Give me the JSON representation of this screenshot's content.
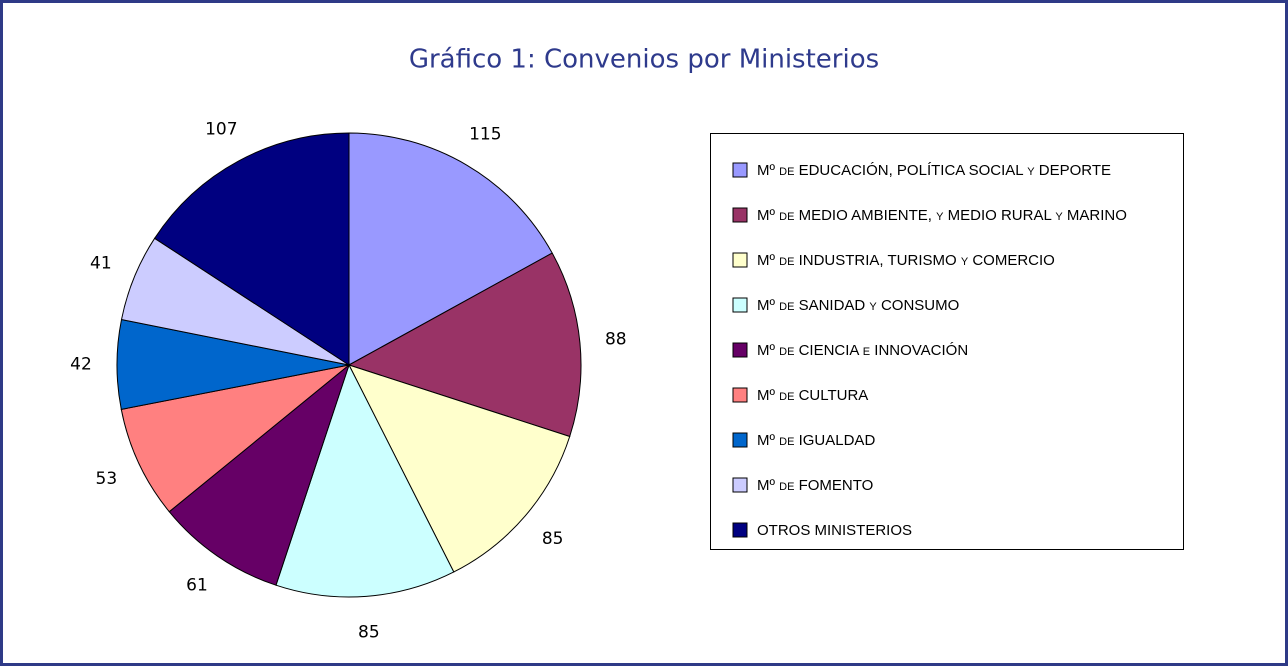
{
  "chart_data": {
    "type": "pie",
    "title": "Gráfico 1: Convenios por Ministerios",
    "categories": [
      "Mº de EDUCACIÓN, POLÍTICA SOCIAL y DEPORTE",
      "Mº de MEDIO AMBIENTE, y MEDIO RURAL y MARINO",
      "Mº de INDUSTRIA, TURISMO y COMERCIO",
      "Mº de SANIDAD y CONSUMO",
      "Mº de CIENCIA e INNOVACIÓN",
      "Mº de CULTURA",
      "Mº de IGUALDAD",
      "Mº de FOMENTO",
      "OTROS MINISTERIOS"
    ],
    "values": [
      115,
      88,
      85,
      85,
      61,
      53,
      42,
      41,
      107
    ],
    "colors": [
      "#9999ff",
      "#993366",
      "#ffffcc",
      "#ccffff",
      "#660066",
      "#ff8080",
      "#0066cc",
      "#ccccff",
      "#000080"
    ],
    "legend": "right"
  }
}
